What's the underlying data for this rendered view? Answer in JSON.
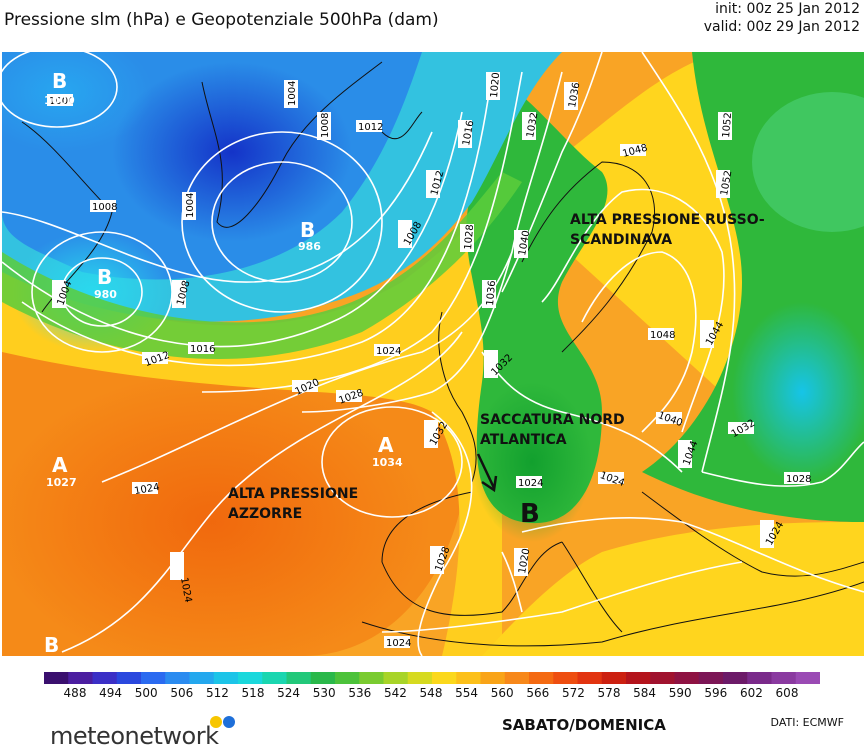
{
  "header": {
    "title": "Pressione slm (hPa) e Geopotenziale 500hPa (dam)",
    "init": "init: 00z 25 Jan 2012",
    "valid": "valid: 00z 29 Jan 2012"
  },
  "systems": [
    {
      "letter": "B",
      "value": "1000"
    },
    {
      "letter": "B",
      "value": "986"
    },
    {
      "letter": "B",
      "value": "980"
    },
    {
      "letter": "A",
      "value": "1027"
    },
    {
      "letter": "A",
      "value": "1034"
    },
    {
      "letter": "B",
      "value": ""
    },
    {
      "letter": "B",
      "value": ""
    }
  ],
  "annotations": {
    "russo_line1": "ALTA PRESSIONE RUSSO-",
    "russo_line2": "SCANDINAVA",
    "saccatura_line1": "SACCATURA NORD",
    "saccatura_line2": "ATLANTICA",
    "azzorre_line1": "ALTA PRESSIONE",
    "azzorre_line2": "AZZORRE"
  },
  "isobars": [
    "1000",
    "1004",
    "1004",
    "1004",
    "1008",
    "1008",
    "1008",
    "1008",
    "1012",
    "1012",
    "1012",
    "1016",
    "1016",
    "1020",
    "1020",
    "1020",
    "1024",
    "1024",
    "1024",
    "1024",
    "1024",
    "1024",
    "1028",
    "1028",
    "1028",
    "1028",
    "1028",
    "1032",
    "1032",
    "1032",
    "1032",
    "1036",
    "1036",
    "1040",
    "1040",
    "1044",
    "1044",
    "1048",
    "1048",
    "1052",
    "1052",
    "1024"
  ],
  "colorbar": {
    "ticks": [
      "488",
      "494",
      "500",
      "506",
      "512",
      "518",
      "524",
      "530",
      "536",
      "542",
      "548",
      "554",
      "560",
      "566",
      "572",
      "578",
      "584",
      "590",
      "596",
      "602",
      "608"
    ]
  },
  "footer": {
    "brand": "meteonetwork",
    "days": "SABATO/DOMENICA",
    "source": "DATI:  ECMWF"
  },
  "colors": {
    "low_blue": "#1b3fd6",
    "cyan": "#18c8e6",
    "green": "#2ab53a",
    "yellow": "#ffd51e",
    "orange": "#f47a10",
    "dot_yellow": "#f7c600",
    "dot_blue": "#1e6fd9"
  }
}
